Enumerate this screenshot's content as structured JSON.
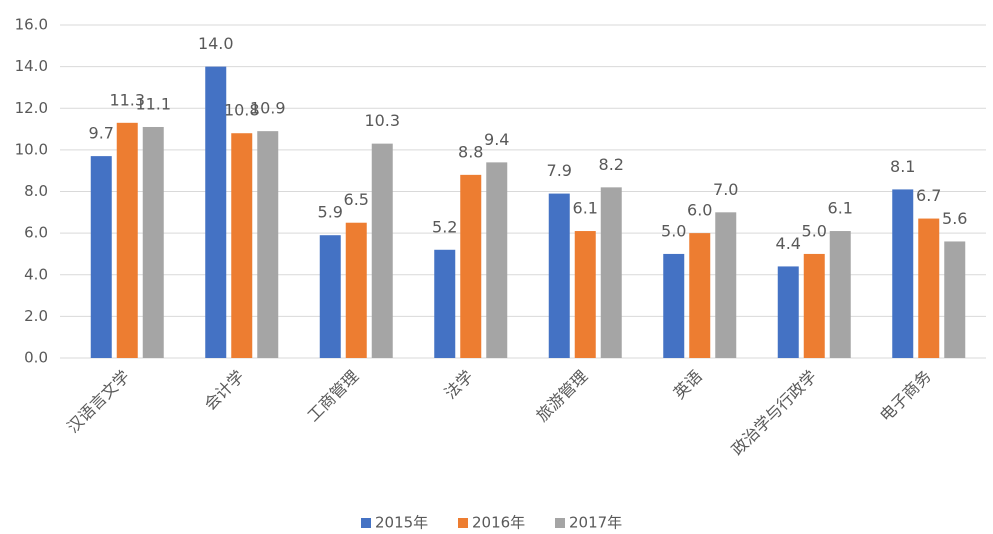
{
  "chart_data": {
    "type": "bar",
    "categories": [
      "汉语言文学",
      "会计学",
      "工商管理",
      "法学",
      "旅游管理",
      "英语",
      "政治学与行政学",
      "电子商务"
    ],
    "series": [
      {
        "name": "2015年",
        "color": "#4472c4",
        "values": [
          9.7,
          14,
          5.9,
          5.2,
          7.9,
          5,
          4.4,
          8.1
        ],
        "value_labels": [
          "9.7",
          "14.0",
          "5.9",
          "5.2",
          "7.9",
          "5.0",
          "4.4",
          "8.1"
        ]
      },
      {
        "name": "2016年",
        "color": "#ed7d31",
        "values": [
          11.3,
          10.8,
          6.5,
          8.8,
          6.1,
          6,
          5,
          6.7
        ],
        "value_labels": [
          "11.3",
          "10.8",
          "6.5",
          "8.8",
          "6.1",
          "6.0",
          "5.0",
          "6.7"
        ]
      },
      {
        "name": "2017年",
        "color": "#a5a5a5",
        "values": [
          11.1,
          10.9,
          10.3,
          9.4,
          8.2,
          7,
          6.1,
          5.6
        ],
        "value_labels": [
          "11.1",
          "10.9",
          "10.3",
          "9.4",
          "8.2",
          "7.0",
          "6.1",
          "5.6"
        ]
      }
    ],
    "ylim": [
      0,
      16
    ],
    "yticks": [
      {
        "value": 0,
        "label": "0.0"
      },
      {
        "value": 2,
        "label": "2.0"
      },
      {
        "value": 4,
        "label": "4.0"
      },
      {
        "value": 6,
        "label": "6.0"
      },
      {
        "value": 8,
        "label": "8.0"
      },
      {
        "value": 10,
        "label": "10.0"
      },
      {
        "value": 12,
        "label": "12.0"
      },
      {
        "value": 14,
        "label": "14.0"
      },
      {
        "value": 16,
        "label": "16.0"
      }
    ],
    "grid": true,
    "legend": "bottom"
  }
}
